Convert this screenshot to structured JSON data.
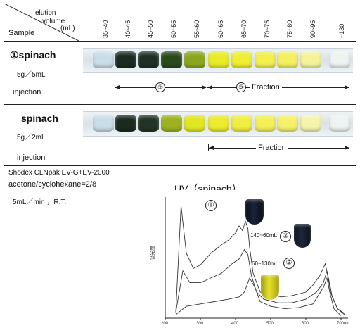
{
  "header": {
    "elution_label": "elution",
    "volume_label": "volume",
    "ml_label": "(mL)",
    "sample_label": "Sample",
    "fractions": [
      "35~40",
      "40~45",
      "45~50",
      "50~55",
      "55~60",
      "60~65",
      "65~70",
      "70~75",
      "75~80",
      "90~95",
      "~130"
    ]
  },
  "row1": {
    "name": "①spinach",
    "amount": "5g／5mL",
    "method": "injection",
    "segment2_marker": "②",
    "segment3_marker": "③",
    "fraction_label": "Fraction",
    "vial_colors": [
      "#c9dde9",
      "#1b2b22",
      "#1e3124",
      "#2a4a1a",
      "#8aa61e",
      "#e8ec26",
      "#eeee32",
      "#f2ef4e",
      "#f4f060",
      "#f5f39a",
      "#eef3f2"
    ]
  },
  "row2": {
    "name": "spinach",
    "amount": "5g／2mL",
    "method": "injection",
    "fraction_label": "Fraction",
    "vial_colors": [
      "#c9dde9",
      "#1a2a1f",
      "#223424",
      "#9db21e",
      "#e1e823",
      "#eceb2e",
      "#f0ee40",
      "#f3ef58",
      "#f5f16c",
      "#f6f4ac",
      "#edf3f2"
    ]
  },
  "conditions": {
    "column": "Shodex CLNpak EV-G+EV-2000",
    "eluent": "acetone/cyclohexane=2/8",
    "flow": "5mL／min ，R.T."
  },
  "uv_panel": {
    "title": "UV（spinach）",
    "marker1": "①",
    "marker2": "②",
    "marker3": "③",
    "label_a": "140~60mL",
    "label_b": "60~130mL",
    "ylabel": "吸光度",
    "x_ticks": [
      "200",
      "300",
      "400",
      "500",
      "600",
      "700nm"
    ]
  },
  "chart_data": {
    "type": "line",
    "title": "UV（spinach）",
    "xlabel": "nm",
    "ylabel": "吸光度",
    "xlim": [
      200,
      720
    ],
    "x_ticks": [
      200,
      300,
      400,
      500,
      600,
      700
    ],
    "series": [
      {
        "name": "①",
        "x": [
          230,
          245,
          260,
          280,
          300,
          330,
          360,
          380,
          400,
          410,
          420,
          428,
          435,
          440,
          450,
          470,
          500,
          530,
          560,
          600,
          620,
          640,
          655,
          665,
          675,
          690,
          710
        ],
        "y": [
          0.05,
          0.95,
          0.55,
          0.42,
          0.45,
          0.55,
          0.62,
          0.66,
          0.72,
          0.78,
          0.74,
          0.82,
          0.76,
          0.6,
          0.38,
          0.22,
          0.2,
          0.18,
          0.19,
          0.22,
          0.28,
          0.36,
          0.46,
          0.33,
          0.18,
          0.08,
          0.04
        ]
      },
      {
        "name": "②",
        "x": [
          230,
          250,
          270,
          300,
          330,
          360,
          390,
          410,
          425,
          435,
          445,
          460,
          480,
          520,
          560,
          600,
          630,
          650,
          660,
          670,
          690,
          710
        ],
        "y": [
          0.05,
          0.4,
          0.3,
          0.3,
          0.34,
          0.38,
          0.46,
          0.5,
          0.58,
          0.54,
          0.36,
          0.22,
          0.16,
          0.13,
          0.13,
          0.16,
          0.22,
          0.3,
          0.4,
          0.22,
          0.08,
          0.03
        ]
      },
      {
        "name": "③",
        "x": [
          230,
          260,
          300,
          340,
          380,
          410,
          425,
          440,
          455,
          470,
          500,
          540,
          580,
          620,
          650,
          660,
          668,
          680,
          700
        ],
        "y": [
          0.03,
          0.1,
          0.12,
          0.14,
          0.16,
          0.18,
          0.22,
          0.34,
          0.26,
          0.14,
          0.1,
          0.08,
          0.09,
          0.12,
          0.26,
          0.34,
          0.22,
          0.08,
          0.02
        ]
      }
    ]
  }
}
